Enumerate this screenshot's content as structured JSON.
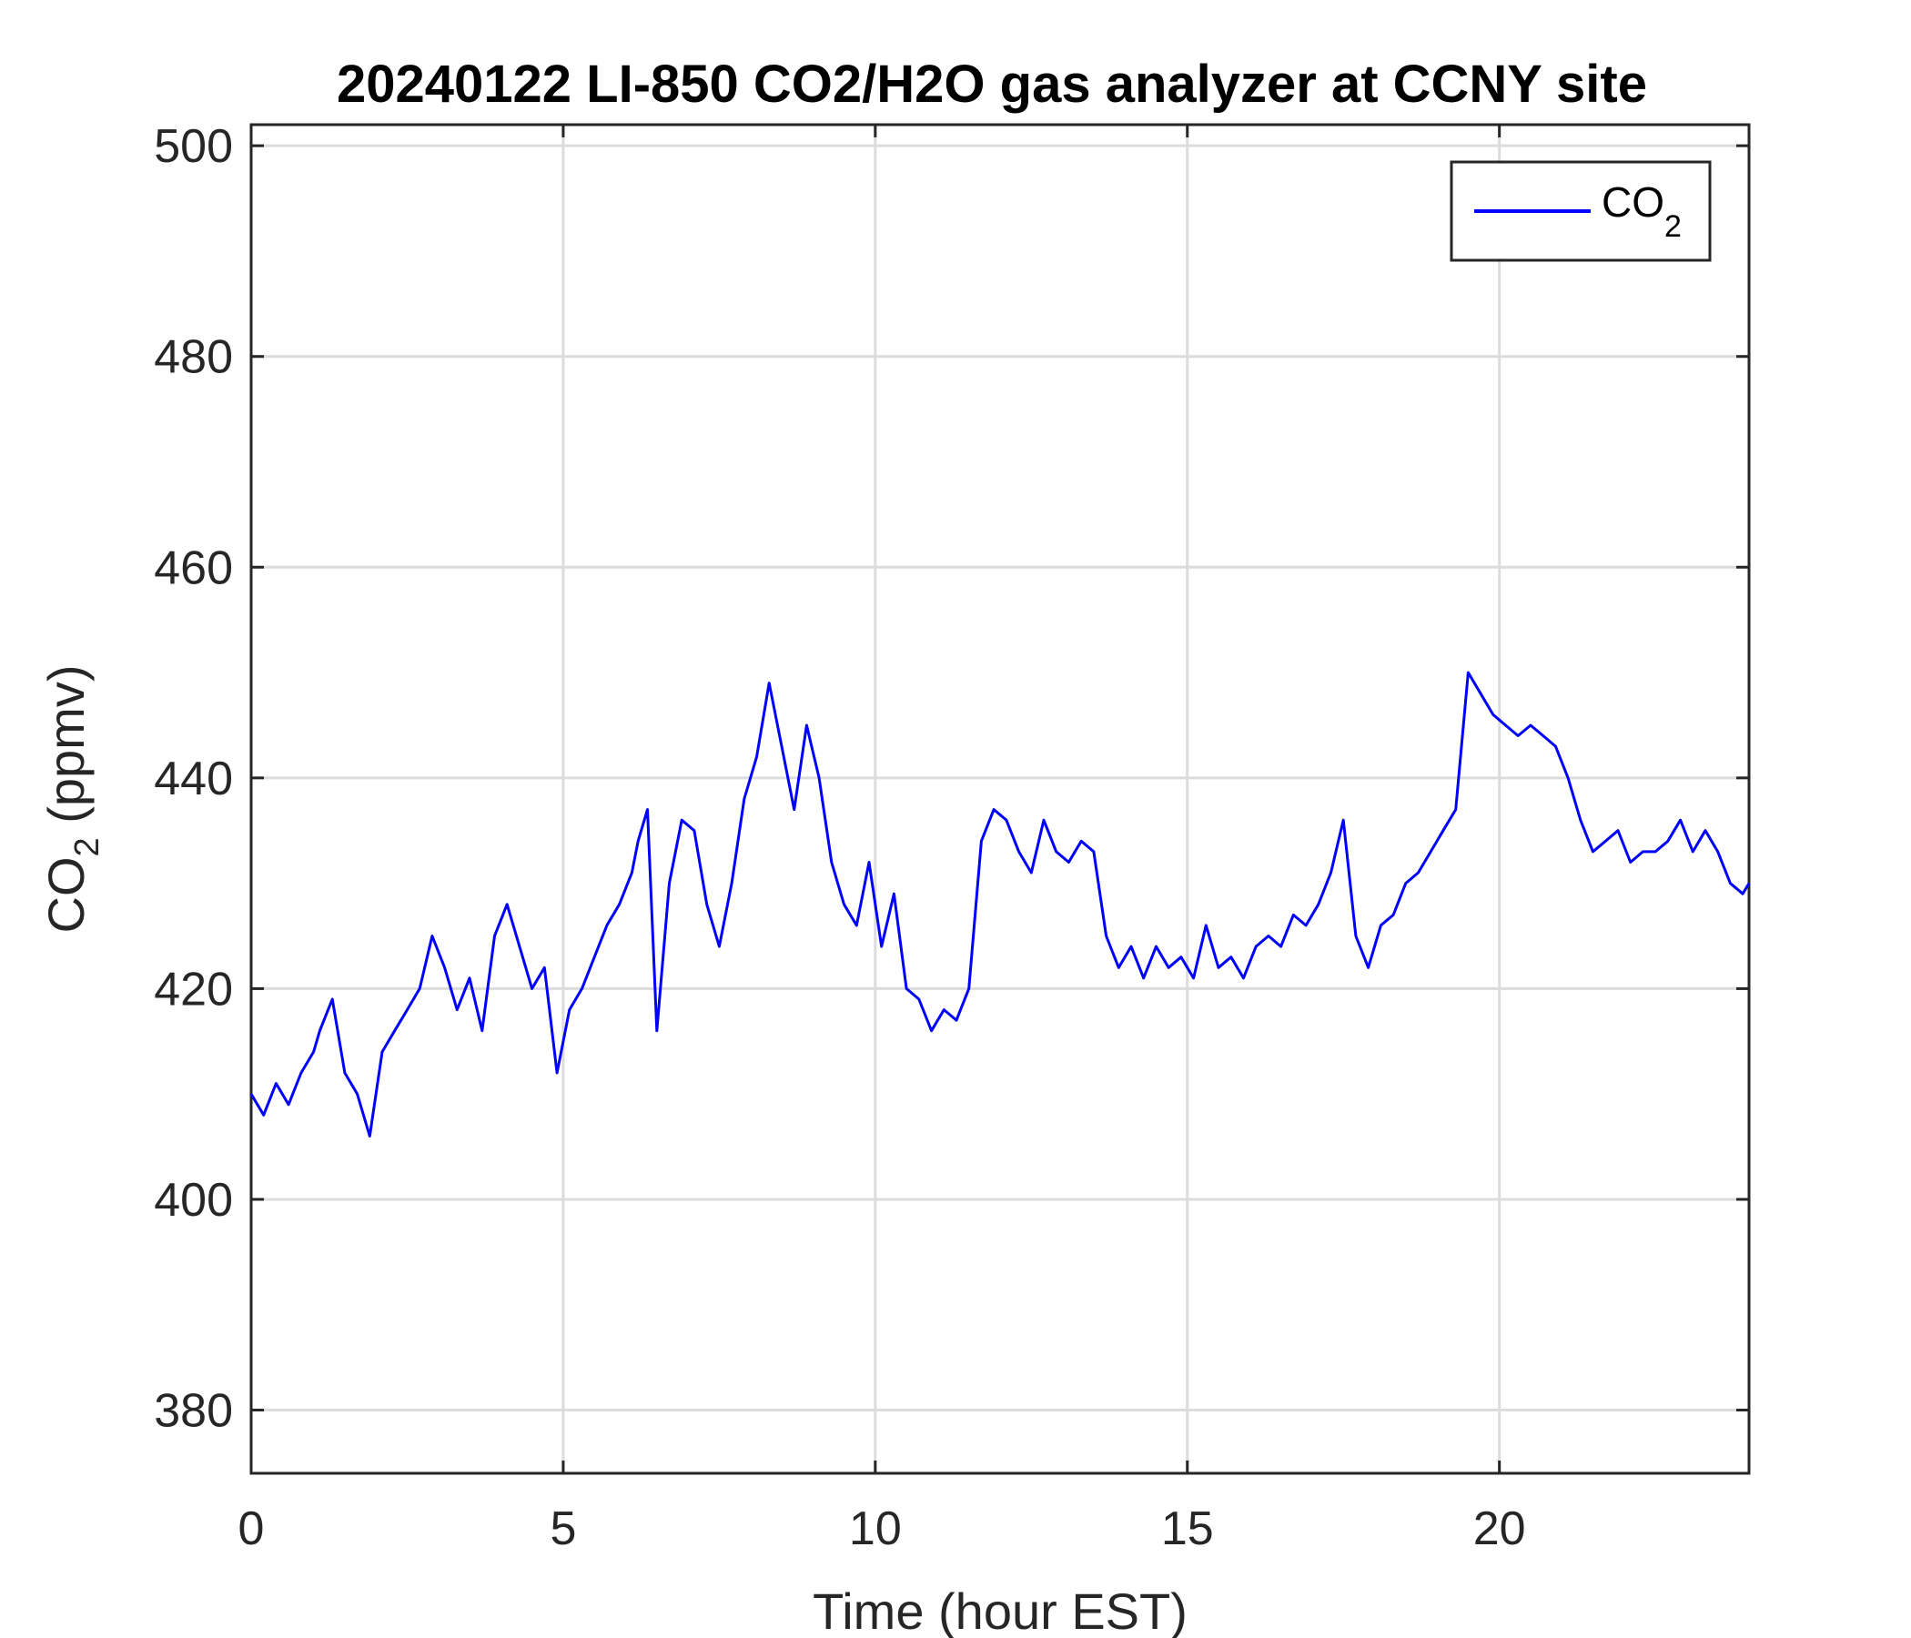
{
  "chart_data": {
    "type": "line",
    "title": "20240122 LI-850 CO2/H2O gas analyzer at CCNY site",
    "xlabel": "Time (hour EST)",
    "ylabel": {
      "base": "CO",
      "sub": "2",
      "rest": " (ppmv)"
    },
    "xlim": [
      0,
      24
    ],
    "ylim": [
      374,
      502
    ],
    "xticks": [
      0,
      5,
      10,
      15,
      20
    ],
    "yticks": [
      380,
      400,
      420,
      440,
      460,
      480,
      500
    ],
    "grid": true,
    "legend": {
      "placement": "top-right",
      "base": "CO",
      "sub": "2"
    },
    "series": [
      {
        "name": "CO2",
        "color": "#0000ff",
        "x": [
          0.0,
          0.2,
          0.4,
          0.6,
          0.8,
          1.0,
          1.1,
          1.3,
          1.5,
          1.7,
          1.9,
          2.1,
          2.3,
          2.5,
          2.7,
          2.9,
          3.1,
          3.3,
          3.5,
          3.7,
          3.9,
          4.1,
          4.3,
          4.5,
          4.7,
          4.9,
          5.1,
          5.3,
          5.5,
          5.7,
          5.9,
          6.1,
          6.2,
          6.35,
          6.5,
          6.7,
          6.9,
          7.1,
          7.3,
          7.5,
          7.7,
          7.9,
          8.1,
          8.3,
          8.5,
          8.7,
          8.9,
          9.1,
          9.3,
          9.5,
          9.7,
          9.9,
          10.1,
          10.3,
          10.5,
          10.7,
          10.9,
          11.1,
          11.3,
          11.5,
          11.7,
          11.9,
          12.1,
          12.3,
          12.5,
          12.7,
          12.9,
          13.1,
          13.3,
          13.5,
          13.7,
          13.9,
          14.1,
          14.3,
          14.5,
          14.7,
          14.9,
          15.1,
          15.3,
          15.5,
          15.7,
          15.9,
          16.1,
          16.3,
          16.5,
          16.7,
          16.9,
          17.1,
          17.3,
          17.5,
          17.7,
          17.9,
          18.1,
          18.3,
          18.5,
          18.7,
          18.9,
          19.1,
          19.3,
          19.5,
          19.7,
          19.9,
          20.1,
          20.3,
          20.5,
          20.7,
          20.9,
          21.1,
          21.3,
          21.5,
          21.7,
          21.9,
          22.1,
          22.3,
          22.5,
          22.7,
          22.9,
          23.1,
          23.3,
          23.5,
          23.7,
          23.9,
          24.0
        ],
        "y": [
          410,
          408,
          411,
          409,
          412,
          414,
          416,
          419,
          412,
          410,
          406,
          414,
          416,
          418,
          420,
          425,
          422,
          418,
          421,
          416,
          425,
          428,
          424,
          420,
          422,
          412,
          418,
          420,
          423,
          426,
          428,
          431,
          434,
          437,
          416,
          430,
          436,
          435,
          428,
          424,
          430,
          438,
          442,
          449,
          443,
          437,
          445,
          440,
          432,
          428,
          426,
          432,
          424,
          429,
          420,
          419,
          416,
          418,
          417,
          420,
          434,
          437,
          436,
          433,
          431,
          436,
          433,
          432,
          434,
          433,
          425,
          422,
          424,
          421,
          424,
          422,
          423,
          421,
          426,
          422,
          423,
          421,
          424,
          425,
          424,
          427,
          426,
          428,
          431,
          436,
          425,
          422,
          426,
          427,
          430,
          431,
          433,
          435,
          437,
          450,
          448,
          446,
          445,
          444,
          445,
          444,
          443,
          440,
          436,
          433,
          434,
          435,
          432,
          433,
          433,
          434,
          436,
          433,
          435,
          433,
          430,
          429,
          430
        ]
      }
    ]
  }
}
